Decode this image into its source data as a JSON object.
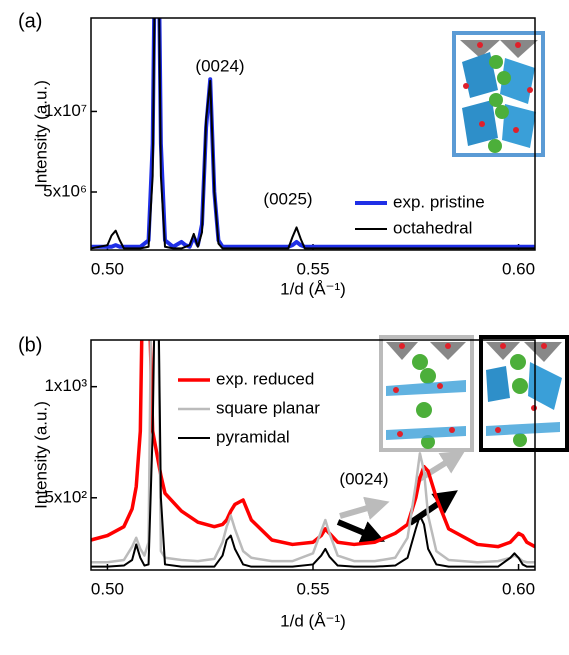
{
  "chart_data": [
    {
      "type": "line",
      "panel_label": "(a)",
      "xlabel": "1/d (Å⁻¹)",
      "ylabel": "Intensity (a.u.)",
      "x": [
        0.496,
        0.5,
        0.501,
        0.502,
        0.503,
        0.504,
        0.508,
        0.51,
        0.511,
        0.512,
        0.513,
        0.514,
        0.516,
        0.518,
        0.519,
        0.52,
        0.521,
        0.522,
        0.523,
        0.524,
        0.525,
        0.526,
        0.527,
        0.528,
        0.53,
        0.54,
        0.544,
        0.545,
        0.546,
        0.547,
        0.548,
        0.552,
        0.57,
        0.59,
        0.604
      ],
      "xlim": [
        0.496,
        0.604
      ],
      "xticks": [
        {
          "value": 0.5,
          "label": "0.50"
        },
        0.55,
        {
          "value": 0.6,
          "label": "0.60"
        }
      ],
      "ylim": [
        1400000,
        15800000
      ],
      "yticks": [
        {
          "value": 5000000,
          "label": "5x10⁶"
        },
        {
          "value": 10000000,
          "label": "1x10⁷"
        }
      ],
      "legend": "lower right",
      "series": [
        {
          "name": "exp. pristine",
          "color": "#1f2fe6",
          "width": 4,
          "values": [
            1600000,
            1600000,
            1600000,
            1700000,
            1600000,
            1600000,
            1600000,
            2000000,
            8000000,
            30000000,
            8000000,
            2000000,
            1600000,
            1900000,
            1700000,
            1600000,
            2200000,
            1700000,
            3000000,
            9000000,
            12000000,
            5000000,
            2000000,
            1600000,
            1600000,
            1600000,
            1600000,
            1700000,
            1900000,
            1700000,
            1600000,
            1600000,
            1600000,
            1600000,
            1600000
          ]
        },
        {
          "name": "octahedral",
          "color": "#000000",
          "width": 2,
          "values": [
            1500000,
            1700000,
            2300000,
            2600000,
            2000000,
            1500000,
            1500000,
            1600000,
            6000000,
            30000000,
            6000000,
            1600000,
            1500000,
            1500000,
            1600000,
            1700000,
            2400000,
            1600000,
            2500000,
            9500000,
            11900000,
            5000000,
            1800000,
            1500000,
            1500000,
            1500000,
            1500000,
            2200000,
            2800000,
            2100000,
            1500000,
            1500000,
            1500000,
            1500000,
            1500000
          ]
        }
      ],
      "annotations": [
        "(0024)",
        "(0025)"
      ]
    },
    {
      "type": "line",
      "panel_label": "(b)",
      "xlabel": "1/d (Å⁻¹)",
      "ylabel": "Intensity (a.u.)",
      "x": [
        0.496,
        0.5,
        0.504,
        0.506,
        0.507,
        0.508,
        0.509,
        0.51,
        0.511,
        0.512,
        0.513,
        0.514,
        0.518,
        0.522,
        0.526,
        0.528,
        0.529,
        0.53,
        0.531,
        0.533,
        0.535,
        0.54,
        0.545,
        0.55,
        0.552,
        0.553,
        0.554,
        0.556,
        0.56,
        0.565,
        0.57,
        0.573,
        0.575,
        0.576,
        0.577,
        0.578,
        0.58,
        0.583,
        0.59,
        0.595,
        0.598,
        0.599,
        0.6,
        0.601,
        0.602,
        0.604
      ],
      "xlim": [
        0.496,
        0.604
      ],
      "xticks": [
        {
          "value": 0.5,
          "label": "0.50"
        },
        0.55,
        {
          "value": 0.6,
          "label": "0.60"
        }
      ],
      "ylim": [
        175,
        1210
      ],
      "yticks": [
        {
          "value": 500,
          "label": "5x10²"
        },
        {
          "value": 1000,
          "label": "1x10³"
        }
      ],
      "legend": "upper left",
      "series": [
        {
          "name": "exp. reduced",
          "color": "#ff0000",
          "width": 3.5,
          "values": [
            310,
            330,
            370,
            450,
            550,
            800,
            2000,
            1500,
            800,
            700,
            600,
            520,
            440,
            390,
            370,
            380,
            400,
            440,
            470,
            490,
            400,
            310,
            290,
            300,
            330,
            360,
            340,
            300,
            290,
            300,
            340,
            380,
            500,
            590,
            640,
            620,
            500,
            360,
            290,
            280,
            300,
            320,
            340,
            330,
            300,
            280
          ]
        },
        {
          "name": "square planar",
          "color": "#bbbbbb",
          "width": 2.5,
          "values": [
            210,
            210,
            220,
            280,
            320,
            270,
            240,
            300,
            2000,
            2000,
            260,
            230,
            220,
            215,
            225,
            300,
            370,
            420,
            360,
            260,
            230,
            215,
            215,
            250,
            350,
            400,
            340,
            240,
            215,
            215,
            230,
            320,
            560,
            700,
            620,
            420,
            260,
            220,
            210,
            215,
            230,
            240,
            230,
            215,
            210,
            210
          ]
        },
        {
          "name": "pyramidal",
          "color": "#000000",
          "width": 2,
          "values": [
            190,
            190,
            195,
            220,
            290,
            230,
            195,
            200,
            800,
            2000,
            500,
            200,
            190,
            190,
            190,
            240,
            310,
            330,
            270,
            200,
            190,
            190,
            190,
            200,
            240,
            270,
            235,
            195,
            190,
            190,
            195,
            230,
            360,
            420,
            380,
            270,
            200,
            190,
            190,
            190,
            230,
            250,
            230,
            200,
            190,
            190
          ]
        }
      ],
      "annotations": [
        "(0024)"
      ]
    }
  ]
}
